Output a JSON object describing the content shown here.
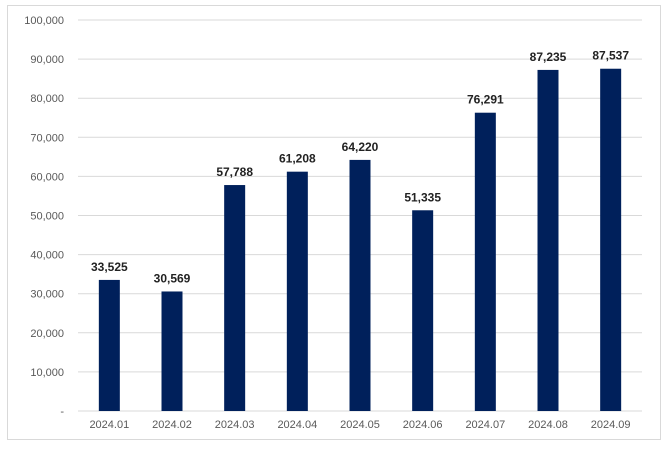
{
  "chart_data": {
    "type": "bar",
    "categories": [
      "2024.01",
      "2024.02",
      "2024.03",
      "2024.04",
      "2024.05",
      "2024.06",
      "2024.07",
      "2024.08",
      "2024.09"
    ],
    "values": [
      33525,
      30569,
      57788,
      61208,
      64220,
      51335,
      76291,
      87235,
      87537
    ],
    "value_labels": [
      "33,525",
      "30,569",
      "57,788",
      "61,208",
      "64,220",
      "51,335",
      "76,291",
      "87,235",
      "87,537"
    ],
    "y_tick_values": [
      0,
      10000,
      20000,
      30000,
      40000,
      50000,
      60000,
      70000,
      80000,
      90000,
      100000
    ],
    "y_tick_labels": [
      "-",
      "10,000",
      "20,000",
      "30,000",
      "40,000",
      "50,000",
      "60,000",
      "70,000",
      "80,000",
      "90,000",
      "100,000"
    ],
    "ylim": [
      0,
      100000
    ],
    "grid": true,
    "bar_color": "#00205b",
    "title": "",
    "xlabel": "",
    "ylabel": ""
  }
}
